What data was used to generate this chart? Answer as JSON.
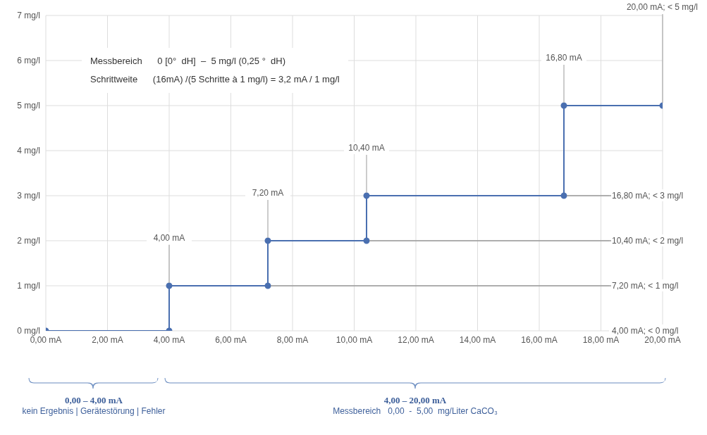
{
  "chart_data": {
    "type": "line",
    "x": [
      0,
      4,
      4,
      7.2,
      7.2,
      10.4,
      10.4,
      16.8,
      16.8,
      20
    ],
    "series": [
      {
        "color": "#4a6fb0",
        "values": [
          0,
          0,
          1,
          1,
          2,
          2,
          3,
          3,
          5,
          5
        ]
      }
    ],
    "xlim": [
      0,
      20
    ],
    "xticks": [
      {
        "value": 0,
        "label": "0,00 mA"
      },
      {
        "value": 2,
        "label": "2,00 mA"
      },
      {
        "value": 4,
        "label": "4,00 mA"
      },
      {
        "value": 6,
        "label": "6,00 mA"
      },
      {
        "value": 8,
        "label": "8,00 mA"
      },
      {
        "value": 10,
        "label": "10,00 mA"
      },
      {
        "value": 12,
        "label": "12,00 mA"
      },
      {
        "value": 14,
        "label": "14,00 mA"
      },
      {
        "value": 16,
        "label": "16,00 mA"
      },
      {
        "value": 18,
        "label": "18,00 mA"
      },
      {
        "value": 20,
        "label": "20,00 mA"
      }
    ],
    "ylim": [
      0,
      7
    ],
    "yticks": [
      {
        "value": 0,
        "label": "0 mg/l"
      },
      {
        "value": 1,
        "label": "1 mg/l"
      },
      {
        "value": 2,
        "label": "2 mg/l"
      },
      {
        "value": 3,
        "label": "3 mg/l"
      },
      {
        "value": 4,
        "label": "4 mg/l"
      },
      {
        "value": 5,
        "label": "5 mg/l"
      },
      {
        "value": 6,
        "label": "6 mg/l"
      },
      {
        "value": 7,
        "label": "7 mg/l"
      }
    ],
    "grid": true,
    "marker": "circle",
    "line_style": "solid",
    "annotations": [
      "Messbereich      0 [0°  dH]  –  5 mg/l (0,25 °  dH)",
      "Schrittweite      (16mA) /(5 Schritte à 1 mg/l) = 3,2 mA / 1 mg/l",
      "0,00 – 4,00 mA",
      "kein Ergebnis | Gerätestörung | Fehler",
      "4,00 – 20,00 mA",
      "Messbereich   0,00  -  5,00  mg/Liter CaCO₃",
      {
        "text": "4,00 mA",
        "x": 4,
        "y": 1
      },
      {
        "text": "7,20 mA",
        "x": 7.2,
        "y": 2
      },
      {
        "text": "10,40 mA",
        "x": 10.4,
        "y": 3
      },
      {
        "text": "16,80 mA",
        "x": 16.8,
        "y": 5
      },
      {
        "text": "20,00 mA; < 5 mg/l",
        "x": 20,
        "y": 5
      },
      {
        "text": "16,80 mA; < 3 mg/l",
        "x": 16.8,
        "y": 3
      },
      {
        "text": "10,40 mA; < 2 mg/l",
        "x": 10.4,
        "y": 2
      },
      {
        "text": "7,20 mA; < 1 mg/l",
        "x": 7.2,
        "y": 1
      },
      "4,00 mA; < 0 mg/l"
    ]
  }
}
